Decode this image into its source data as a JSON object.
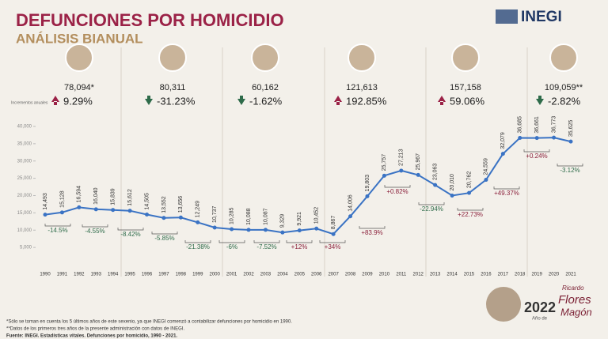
{
  "header": {
    "title": "DEFUNCIONES POR HOMICIDIO",
    "subtitle": "ANÁLISIS BIANUAL",
    "logo": "INEGI"
  },
  "presidents": {
    "totals": [
      "78,094*",
      "80,311",
      "60,162",
      "121,613",
      "157,158",
      "109,059**"
    ],
    "changes": [
      "9.29%",
      "-31.23%",
      "-1.62%",
      "192.85%",
      "59.06%",
      "-2.82%"
    ]
  },
  "chart_data": {
    "type": "line",
    "y_label": "Incrementos anuales",
    "categories": [
      "1990",
      "1991",
      "1992",
      "1993",
      "1994",
      "1995",
      "1996",
      "1997",
      "1998",
      "1999",
      "2000",
      "2001",
      "2002",
      "2003",
      "2004",
      "2005",
      "2006",
      "2007",
      "2008",
      "2009",
      "2010",
      "2011",
      "2012",
      "2013",
      "2014",
      "2015",
      "2016",
      "2017",
      "2018",
      "2019",
      "2020",
      "2021"
    ],
    "values": [
      14493,
      15128,
      16594,
      16040,
      15839,
      15612,
      14505,
      13552,
      13656,
      12249,
      10737,
      10285,
      10088,
      10087,
      9329,
      9921,
      10452,
      8867,
      14006,
      19803,
      25757,
      27213,
      25967,
      23063,
      20010,
      20762,
      24559,
      32079,
      36685,
      36661,
      36773,
      35625
    ],
    "value_labels": [
      "14,493",
      "15,128",
      "16,594",
      "16,040",
      "15,839",
      "15,612",
      "14,505",
      "13,552",
      "13,656",
      "12,249",
      "10,737",
      "10,285",
      "10,088",
      "10,087",
      "9,329",
      "9,921",
      "10,452",
      "8,867",
      "14,006",
      "19,803",
      "25,757",
      "27,213",
      "25,967",
      "23,063",
      "20,010",
      "20,762",
      "24,559",
      "32,079",
      "36,685",
      "36,661",
      "36,773",
      "35,625"
    ],
    "color": "#3a73c4",
    "ylim": [
      0,
      40000
    ],
    "yticks": [
      {
        "value": 5000,
        "label": "5,000"
      },
      {
        "value": 10000,
        "label": "10,000"
      },
      {
        "value": 15000,
        "label": "15,000"
      },
      {
        "value": 20000,
        "label": "20,000"
      },
      {
        "value": 25000,
        "label": "25,000"
      },
      {
        "value": 30000,
        "label": "30,000"
      },
      {
        "value": 35000,
        "label": "35,000"
      },
      {
        "value": 40000,
        "label": "40,000"
      }
    ],
    "changes": [
      "-14.5%",
      "-4.55%",
      "-8.42%",
      "-5.85%",
      "-21.38%",
      "-6%",
      "-7.52%",
      "+12%",
      "+34%",
      "+83.9%",
      "+0.82%",
      "-22.94%",
      "+22.73%",
      "+49.37%",
      "+0.24%",
      "-3.12%"
    ]
  },
  "footer": {
    "notes": [
      "*Sólo se toman en cuenta los 5 últimos años de este sexenio, ya que INEGI comenzó a contabilizar defunciones por homicidio en 1990.",
      "**Datos de los primeros tres años de la presente administración con datos de INEGI.",
      "Fuente: INEGI. Estadísticas vitales. Defunciones por homicidio, 1990 - 2021."
    ],
    "badge": [
      "2022",
      "Año de",
      "Ricardo",
      "Flores",
      "Magón"
    ]
  }
}
